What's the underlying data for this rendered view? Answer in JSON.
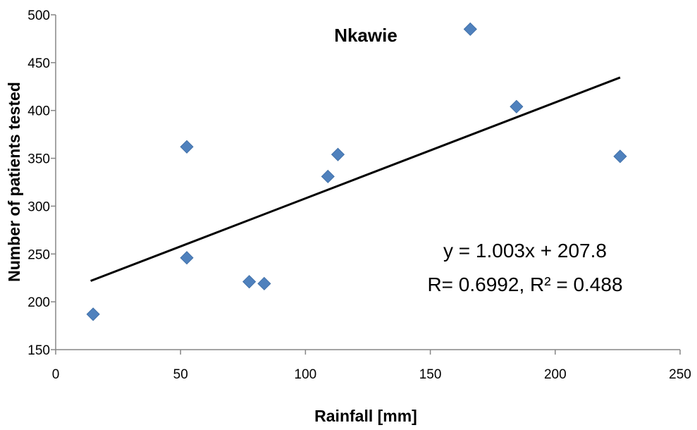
{
  "chart_data": {
    "type": "scatter",
    "title": "Nkawie",
    "xlabel": "Rainfall [mm]",
    "ylabel": "Number of patients tested",
    "xlim": [
      0,
      250
    ],
    "ylim": [
      150,
      500
    ],
    "x_ticks": [
      0,
      50,
      100,
      150,
      200,
      250
    ],
    "y_ticks": [
      150,
      200,
      250,
      300,
      350,
      400,
      450,
      500
    ],
    "grid": false,
    "legend": "none",
    "marker": "diamond",
    "marker_color": "#4f81bd",
    "trendline_color": "#000000",
    "points": [
      {
        "x": 15,
        "y": 187
      },
      {
        "x": 52.5,
        "y": 246
      },
      {
        "x": 52.5,
        "y": 362
      },
      {
        "x": 77.5,
        "y": 221
      },
      {
        "x": 83.5,
        "y": 219
      },
      {
        "x": 109,
        "y": 331
      },
      {
        "x": 113,
        "y": 354
      },
      {
        "x": 166,
        "y": 485
      },
      {
        "x": 184.5,
        "y": 404
      },
      {
        "x": 226,
        "y": 352
      }
    ],
    "trendline": {
      "slope": 1.003,
      "intercept": 207.8,
      "x_range": [
        14,
        226
      ]
    },
    "annotations": [
      "y = 1.003x + 207.8",
      "R= 0.6992,  R² = 0.488"
    ]
  }
}
